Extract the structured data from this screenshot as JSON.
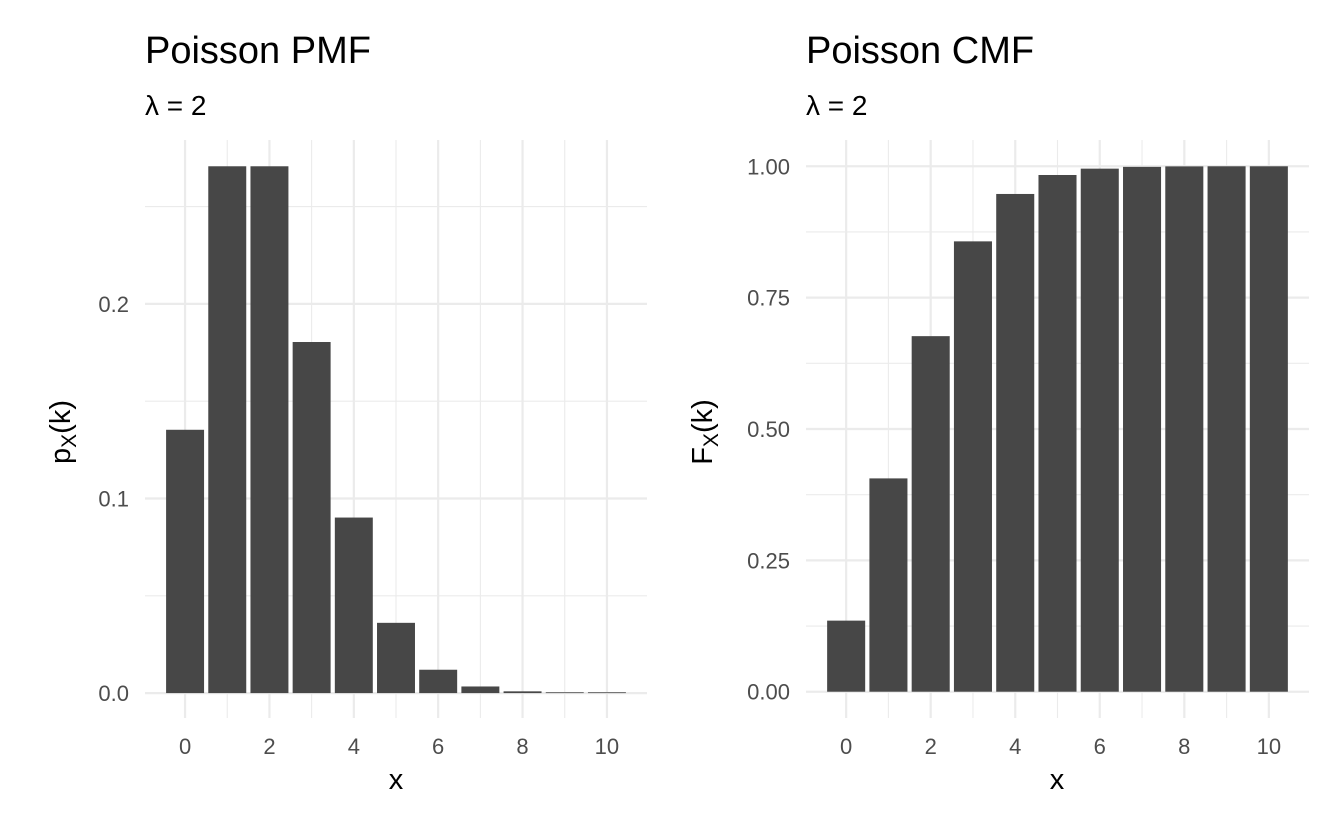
{
  "chart_data": [
    {
      "type": "bar",
      "title": "Poisson PMF",
      "subtitle": "λ = 2",
      "xlabel": "x",
      "ylabel": "p",
      "ylabel_subscript": "X",
      "ylabel_suffix": "(k)",
      "x": [
        0,
        1,
        2,
        3,
        4,
        5,
        6,
        7,
        8,
        9,
        10
      ],
      "values": [
        0.1353,
        0.2707,
        0.2707,
        0.1804,
        0.0902,
        0.0361,
        0.012,
        0.0034,
        0.0009,
        0.0002,
        4e-05
      ],
      "xlim": [
        -0.95,
        10.95
      ],
      "ylim": [
        -0.0128,
        0.2842
      ],
      "xticks": [
        0,
        2,
        4,
        6,
        8,
        10
      ],
      "xtick_labels": [
        "0",
        "2",
        "4",
        "6",
        "8",
        "10"
      ],
      "yticks": [
        0.0,
        0.1,
        0.2
      ],
      "ytick_labels": [
        "0.0",
        "0.1",
        "0.2"
      ],
      "yminor": [
        0.05,
        0.15,
        0.25
      ],
      "bar_color": "#474747",
      "grid": true
    },
    {
      "type": "bar",
      "title": "Poisson CMF",
      "subtitle": "λ = 2",
      "xlabel": "x",
      "ylabel": "F",
      "ylabel_subscript": "X",
      "ylabel_suffix": "(k)",
      "x": [
        0,
        1,
        2,
        3,
        4,
        5,
        6,
        7,
        8,
        9,
        10
      ],
      "values": [
        0.1353,
        0.406,
        0.6767,
        0.8571,
        0.9473,
        0.9834,
        0.9955,
        0.9989,
        0.9998,
        1.0,
        1.0
      ],
      "xlim": [
        -0.95,
        10.95
      ],
      "ylim": [
        -0.05,
        1.05
      ],
      "xticks": [
        0,
        2,
        4,
        6,
        8,
        10
      ],
      "xtick_labels": [
        "0",
        "2",
        "4",
        "6",
        "8",
        "10"
      ],
      "yticks": [
        0.0,
        0.25,
        0.5,
        0.75,
        1.0
      ],
      "ytick_labels": [
        "0.00",
        "0.25",
        "0.50",
        "0.75",
        "1.00"
      ],
      "yminor": [
        0.125,
        0.375,
        0.625,
        0.875
      ],
      "bar_color": "#474747",
      "grid": true
    }
  ]
}
